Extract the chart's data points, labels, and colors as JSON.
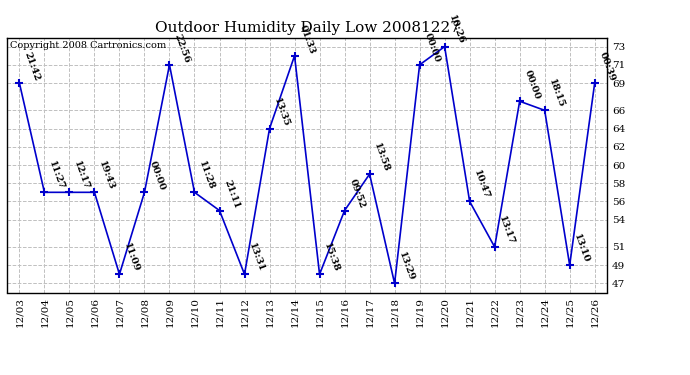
{
  "title": "Outdoor Humidity Daily Low 20081227",
  "copyright": "Copyright 2008 Cartronics.com",
  "x_labels": [
    "12/03",
    "12/04",
    "12/05",
    "12/06",
    "12/07",
    "12/08",
    "12/09",
    "12/10",
    "12/11",
    "12/12",
    "12/13",
    "12/14",
    "12/15",
    "12/16",
    "12/17",
    "12/18",
    "12/19",
    "12/20",
    "12/21",
    "12/22",
    "12/23",
    "12/24",
    "12/25",
    "12/26"
  ],
  "y_values": [
    69,
    57,
    57,
    57,
    48,
    57,
    71,
    57,
    55,
    48,
    64,
    72,
    48,
    55,
    59,
    47,
    71,
    73,
    56,
    51,
    67,
    66,
    49,
    69
  ],
  "point_labels": [
    "21:42",
    "11:27",
    "12:17",
    "19:43",
    "11:09",
    "00:00",
    "22:56",
    "11:28",
    "21:11",
    "13:31",
    "13:35",
    "01:33",
    "15:38",
    "09:52",
    "13:58",
    "13:29",
    "00:00",
    "10:26",
    "10:47",
    "13:17",
    "00:00",
    "18:15",
    "13:10",
    "00:39"
  ],
  "ylim_low": 46,
  "ylim_high": 74,
  "yticks": [
    47,
    49,
    51,
    54,
    56,
    58,
    60,
    62,
    64,
    66,
    69,
    71,
    73
  ],
  "line_color": "#0000cc",
  "bg_color": "#ffffff",
  "grid_color": "#c0c0c0",
  "title_fontsize": 11,
  "label_fontsize": 7,
  "copyright_fontsize": 7,
  "tick_fontsize": 7.5
}
